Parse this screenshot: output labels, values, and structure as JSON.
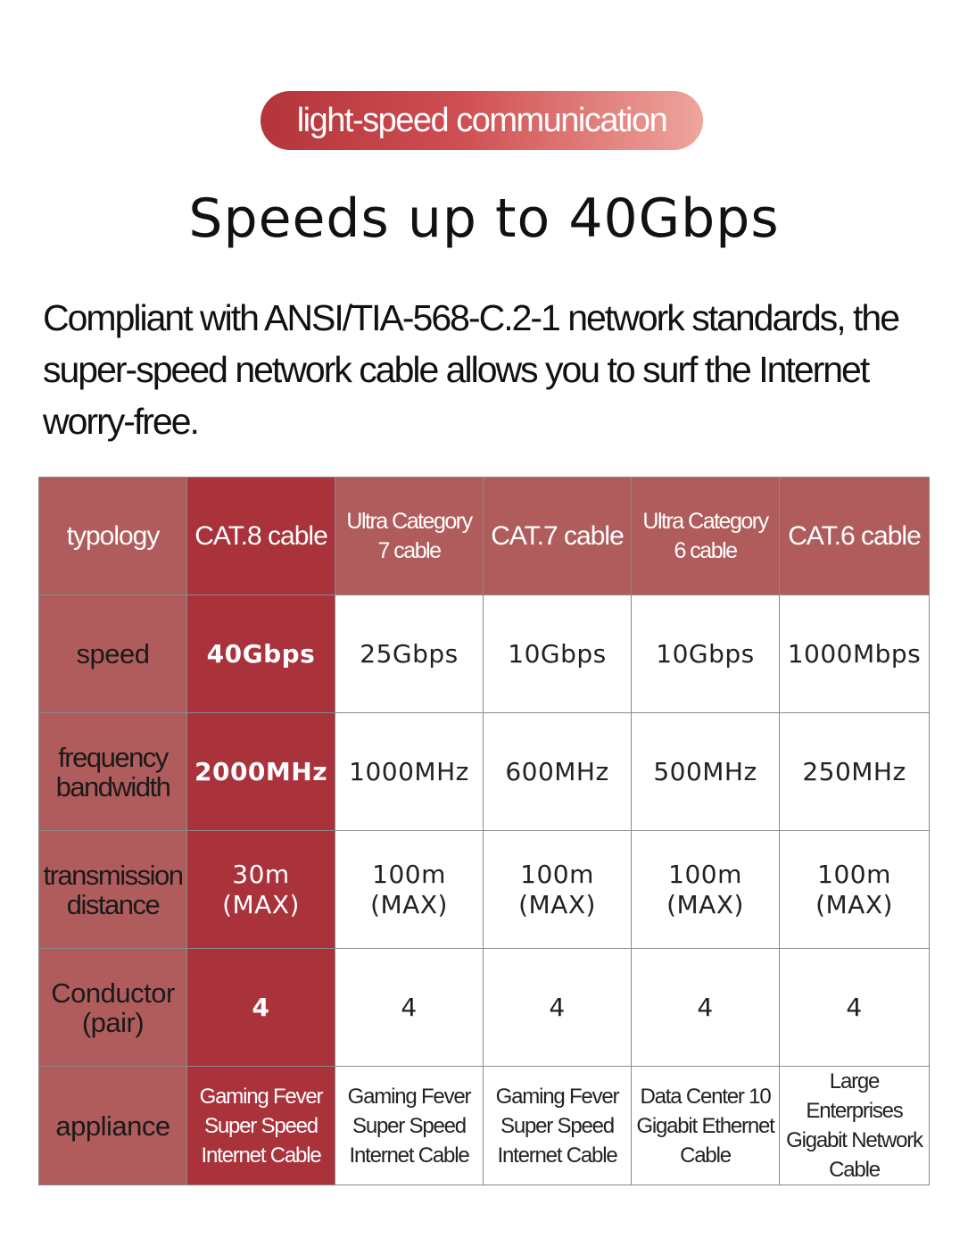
{
  "badge": "light-speed communication",
  "headline": "Speeds up to 40Gbps",
  "intro": "Compliant with ANSI/TIA-568-C.2-1 network standards, the super-speed network cable allows you to surf the Internet worry-free.",
  "table": {
    "header": {
      "label": "typology",
      "cols": [
        "CAT.8 cable",
        "Ultra Category\n7 cable",
        "CAT.7 cable",
        "Ultra Category\n6 cable",
        "CAT.6 cable"
      ]
    },
    "rows": [
      {
        "label": "speed",
        "values": [
          "40Gbps",
          "25Gbps",
          "10Gbps",
          "10Gbps",
          "1000Mbps"
        ]
      },
      {
        "label": "frequency\nbandwidth",
        "values": [
          "2000MHz",
          "1000MHz",
          "600MHz",
          "500MHz",
          "250MHz"
        ]
      },
      {
        "label": "transmission\ndistance",
        "values": [
          "30m\n(MAX)",
          "100m\n(MAX)",
          "100m\n(MAX)",
          "100m\n(MAX)",
          "100m\n(MAX)"
        ]
      },
      {
        "label": "Conductor\n(pair)",
        "values": [
          "4",
          "4",
          "4",
          "4",
          "4"
        ]
      },
      {
        "label": "appliance",
        "values": [
          "Gaming Fever\nSuper Speed\nInternet Cable",
          "Gaming Fever\nSuper Speed\nInternet Cable",
          "Gaming Fever\nSuper Speed\nInternet Cable",
          "Data Center 10\nGigabit Ethernet\nCable",
          "Large Enterprises\nGigabit Network\nCable"
        ]
      }
    ]
  },
  "colors": {
    "accent": "#a9323b",
    "label_bg": "#b15c5c",
    "badge_start": "#b3343b",
    "badge_end": "#efa59d"
  }
}
